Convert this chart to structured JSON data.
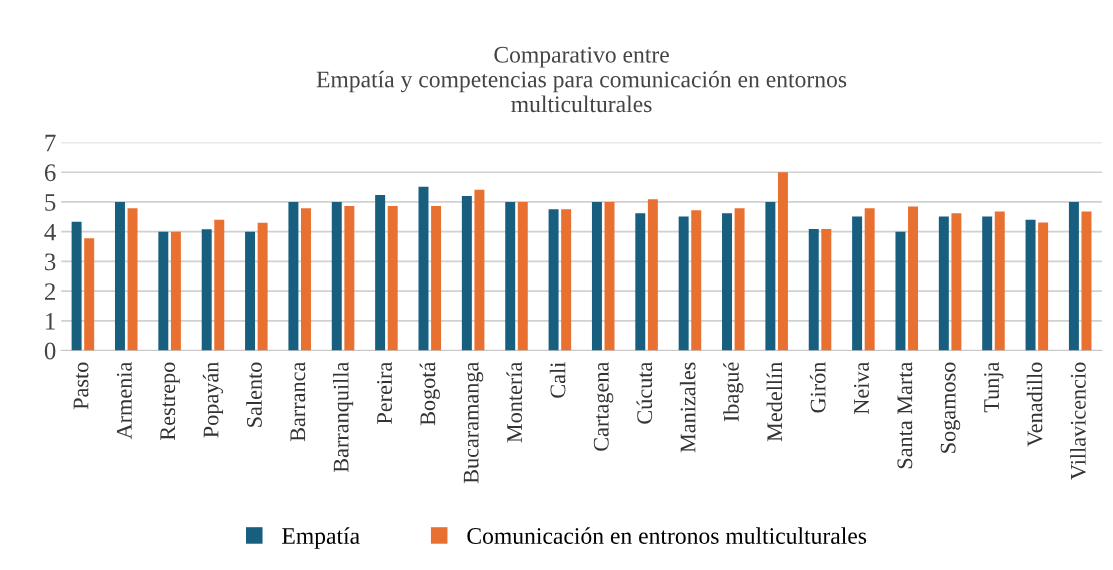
{
  "chart_data": {
    "type": "bar",
    "title": "Comparativo entre\nEmpatía y competencias para comunicación en entornos\nmulticulturales",
    "categories": [
      "Pasto",
      "Armenia",
      "Restrepo",
      "Popayán",
      "Salento",
      "Barranca",
      "Barranquilla",
      "Pereira",
      "Bogotá",
      "Bucaramanga",
      "Montería",
      "Cali",
      "Cartagena",
      "Cúcuta",
      "Manizales",
      "Ibagué",
      "Medellín",
      "Girón",
      "Neiva",
      "Santa Marta",
      "Sogamoso",
      "Tunja",
      "Venadillo",
      "Villavicencio"
    ],
    "series": [
      {
        "name": "Empatía",
        "color": "#175e7f",
        "values": [
          4.33,
          5,
          4,
          4.08,
          4,
          5,
          5,
          5.23,
          5.51,
          5.2,
          5,
          4.75,
          5,
          4.62,
          4.51,
          4.62,
          5,
          4.09,
          4.51,
          4,
          4.51,
          4.51,
          4.4,
          5
        ]
      },
      {
        "name": "Comunicación en entronos multiculturales",
        "color": "#e87131",
        "values": [
          3.78,
          4.79,
          4,
          4.4,
          4.3,
          4.79,
          4.86,
          4.86,
          4.86,
          5.41,
          5,
          4.75,
          5,
          5.09,
          4.72,
          4.79,
          6,
          4.09,
          4.79,
          4.85,
          4.62,
          4.68,
          4.31,
          4.68
        ]
      }
    ],
    "ylim": [
      0,
      7
    ],
    "yticks": [
      0,
      1,
      2,
      3,
      4,
      5,
      6,
      7
    ],
    "grid": "y",
    "legend": "bottom"
  }
}
